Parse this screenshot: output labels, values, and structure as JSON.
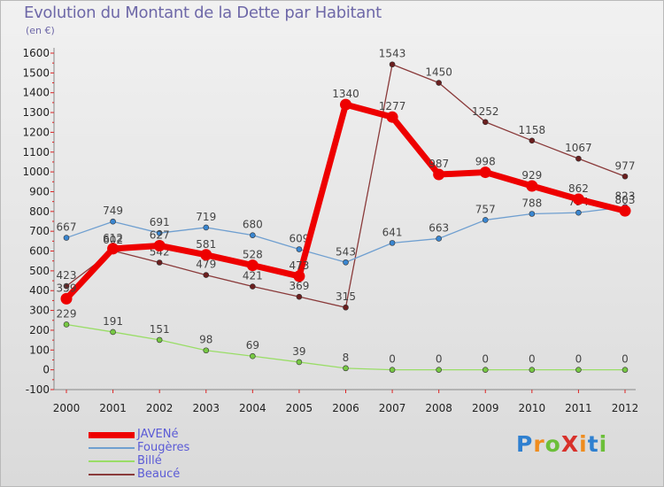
{
  "title": "Evolution du Montant de la Dette par Habitant",
  "subtitle": "(en €)",
  "logo": {
    "text": "ProXiti",
    "colors": [
      "#2f80d0",
      "#ef8c1e",
      "#6cbf3a",
      "#d8312b",
      "#ef8c1e",
      "#2f80d0",
      "#6cbf3a"
    ]
  },
  "chart_data": {
    "type": "line",
    "x": [
      2000,
      2001,
      2002,
      2003,
      2004,
      2005,
      2006,
      2007,
      2008,
      2009,
      2010,
      2011,
      2012
    ],
    "ylim": [
      -100,
      1600
    ],
    "yticks": [
      -100,
      0,
      100,
      200,
      300,
      400,
      500,
      600,
      700,
      800,
      900,
      1000,
      1100,
      1200,
      1300,
      1400,
      1500,
      1600
    ],
    "legend_position": "bottom-left",
    "grid": false,
    "series": [
      {
        "name": "JAVENé",
        "color": "#ee0000",
        "values": [
          359,
          612,
          627,
          581,
          528,
          473,
          1340,
          1277,
          987,
          998,
          929,
          862,
          803
        ]
      },
      {
        "name": "Fougères",
        "color": "#6f9fd0",
        "point_color": "#3a86d0",
        "values": [
          667,
          749,
          691,
          719,
          680,
          609,
          543,
          641,
          663,
          757,
          788,
          794,
          823
        ]
      },
      {
        "name": "Billé",
        "color": "#99dd66",
        "point_color": "#77c844",
        "values": [
          229,
          191,
          151,
          98,
          69,
          39,
          8,
          0,
          0,
          0,
          0,
          0,
          0
        ]
      },
      {
        "name": "Beaucé",
        "color": "#8a3a3a",
        "point_color": "#6b1f1f",
        "values": [
          423,
          602,
          542,
          479,
          421,
          369,
          315,
          1543,
          1450,
          1252,
          1158,
          1067,
          977
        ]
      }
    ]
  }
}
